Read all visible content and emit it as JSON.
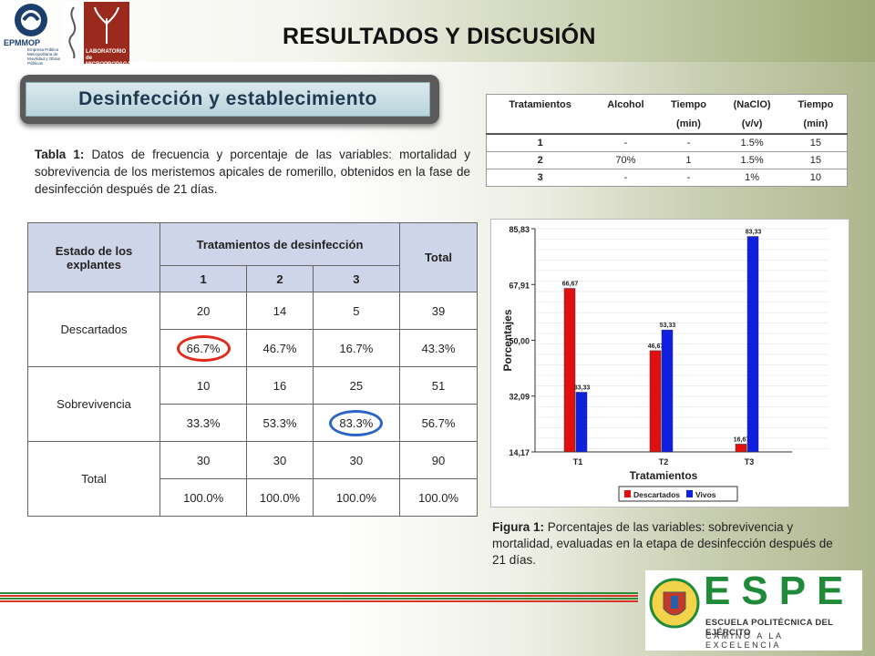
{
  "header": {
    "title": "RESULTADOS Y DISCUSIÓN",
    "logo_left": {
      "name": "EPMMOP",
      "subtitle": "Empresa Pública Metropolitana de Movilidad y Obras Públicas"
    },
    "logo_right": {
      "name": "LABORATORIO de MICROPROPAGACIÓN"
    }
  },
  "section": {
    "title": "Desinfección y establecimiento"
  },
  "table1_caption": {
    "label": "Tabla 1:",
    "text": " Datos de frecuencia y porcentaje de las variables: mortalidad y sobrevivencia de los meristemos apicales de romerillo, obtenidos en la fase de desinfección después de 21 días."
  },
  "treatments_table": {
    "headers": [
      [
        "Tratamientos",
        "Alcohol",
        "Tiempo",
        "(NaClO)",
        "Tiempo"
      ],
      [
        "",
        "",
        "(min)",
        "(v/v)",
        "(min)"
      ]
    ],
    "rows": [
      [
        "1",
        "-",
        "-",
        "1.5%",
        "15"
      ],
      [
        "2",
        "70%",
        "1",
        "1.5%",
        "15"
      ],
      [
        "3",
        "-",
        "-",
        "1%",
        "10"
      ]
    ]
  },
  "main_table": {
    "col_state": "Estado de los explantes",
    "col_treatments": "Tratamientos de desinfección",
    "col_total": "Total",
    "sub": [
      "1",
      "2",
      "3"
    ],
    "groups": [
      {
        "label": "Descartados",
        "freq": [
          "20",
          "14",
          "5",
          "39"
        ],
        "pct": [
          "66.7%",
          "46.7%",
          "16.7%",
          "43.3%"
        ]
      },
      {
        "label": "Sobrevivencia",
        "freq": [
          "10",
          "16",
          "25",
          "51"
        ],
        "pct": [
          "33.3%",
          "53.3%",
          "83.3%",
          "56.7%"
        ]
      },
      {
        "label": "Total",
        "freq": [
          "30",
          "30",
          "30",
          "90"
        ],
        "pct": [
          "100.0%",
          "100.0%",
          "100.0%",
          "100.0%"
        ]
      }
    ]
  },
  "chart_data": {
    "type": "bar",
    "categories": [
      "T1",
      "T2",
      "T3"
    ],
    "series": [
      {
        "name": "Descartados",
        "color": "#e01010",
        "values": [
          66.67,
          46.67,
          16.67
        ]
      },
      {
        "name": "Vivos",
        "color": "#1020e0",
        "values": [
          33.33,
          53.33,
          83.33
        ]
      }
    ],
    "xlabel": "Tratamientos",
    "ylabel": "Porcentajes",
    "yticks": [
      "85,83",
      "67,91",
      "50,00",
      "32,09",
      "14,17"
    ],
    "ylim": [
      14.17,
      85.83
    ],
    "legend": "bottom",
    "data_labels": true
  },
  "figure_caption": {
    "label": "Figura 1:",
    "text": " Porcentajes de las variables: sobrevivencia y mortalidad, evaluadas en la etapa de desinfección después de 21 días."
  },
  "footer": {
    "letters": "ESPE",
    "school": "ESCUELA POLITÉCNICA DEL EJÉRCITO",
    "motto": "CAMINO A LA EXCELENCIA"
  }
}
